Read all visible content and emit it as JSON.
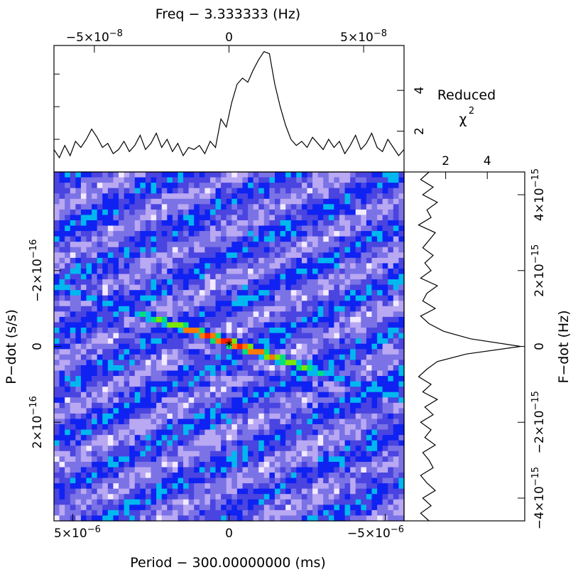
{
  "chart_data": [
    {
      "type": "line",
      "panel": "top",
      "xlabel": "Freq − 3.333333 (Hz)",
      "ylabel": "Reduced",
      "ylabel_symbol": "χ",
      "ylabel_exp": "2",
      "xlim": [
        -6.5e-08,
        6.5e-08
      ],
      "ylim": [
        0,
        6.2
      ],
      "x_ticks": [
        {
          "value": -5e-08,
          "base": "−5×10",
          "exp": "−8"
        },
        {
          "value": 0,
          "base": "0",
          "exp": ""
        },
        {
          "value": 5e-08,
          "base": "5×10",
          "exp": "−8"
        }
      ],
      "y_ticks": [
        {
          "value": 2,
          "label": "2"
        },
        {
          "value": 4,
          "label": "4"
        }
      ],
      "series": [
        {
          "x": [
            -6.5e-08,
            -6.3e-08,
            -6.1e-08,
            -5.9e-08,
            -5.7e-08,
            -5.5e-08,
            -5.3e-08,
            -5.1e-08,
            -4.9e-08,
            -4.7e-08,
            -4.5e-08,
            -4.3e-08,
            -4.1e-08,
            -3.9e-08,
            -3.7e-08,
            -3.5e-08,
            -3.3e-08,
            -3.1e-08,
            -2.9e-08,
            -2.7e-08,
            -2.5e-08,
            -2.3e-08,
            -2.1e-08,
            -1.9e-08,
            -1.7e-08,
            -1.5e-08,
            -1.3e-08,
            -1.1e-08,
            -9e-09,
            -7e-09,
            -5e-09,
            -3e-09,
            -1e-09,
            1e-09,
            3e-09,
            5e-09,
            7e-09,
            9e-09,
            1.1e-08,
            1.3e-08,
            1.5e-08,
            1.7e-08,
            1.9e-08,
            2.1e-08,
            2.3e-08,
            2.5e-08,
            2.7e-08,
            2.9e-08,
            3.1e-08,
            3.3e-08,
            3.5e-08,
            3.7e-08,
            3.9e-08,
            4.1e-08,
            4.3e-08,
            4.5e-08,
            4.7e-08,
            4.9e-08,
            5.1e-08,
            5.3e-08,
            5.5e-08,
            5.7e-08,
            5.9e-08,
            6.1e-08,
            6.3e-08,
            6.5e-08
          ],
          "values": [
            1.1,
            0.7,
            1.3,
            0.8,
            1.5,
            1.2,
            1.6,
            2.1,
            1.7,
            1.2,
            1.4,
            0.9,
            1.1,
            1.5,
            1.0,
            1.3,
            1.8,
            1.1,
            1.4,
            1.9,
            1.2,
            1.6,
            1.0,
            1.4,
            0.8,
            1.2,
            1.1,
            1.3,
            0.9,
            1.5,
            1.2,
            2.6,
            2.2,
            3.4,
            4.3,
            4.6,
            4.4,
            5.0,
            5.5,
            5.9,
            5.8,
            4.3,
            3.2,
            2.3,
            1.6,
            1.3,
            1.5,
            1.2,
            1.7,
            1.4,
            1.1,
            1.6,
            1.2,
            1.5,
            0.9,
            1.3,
            1.8,
            1.1,
            1.4,
            1.9,
            1.2,
            1.0,
            1.6,
            1.2,
            0.8,
            1.1
          ]
        }
      ]
    },
    {
      "type": "heatmap",
      "panel": "main",
      "xlabel": "Period − 300.00000000 (ms)",
      "ylabel": "P−dot (s/s)",
      "xlim": [
        5.6e-06,
        -5.6e-06
      ],
      "ylim": [
        -4.6e-16,
        4.6e-16
      ],
      "x_ticks": [
        {
          "value": 5e-06,
          "base": "5×10",
          "exp": "−6"
        },
        {
          "value": 0,
          "base": "0",
          "exp": ""
        },
        {
          "value": -5e-06,
          "base": "−5×10",
          "exp": "−6"
        }
      ],
      "y_ticks": [
        {
          "value": -2e-16,
          "base": "−2×10",
          "exp": "−16"
        },
        {
          "value": 0,
          "base": "0",
          "exp": ""
        },
        {
          "value": 2e-16,
          "base": "2×10",
          "exp": "−16"
        }
      ],
      "best_fit": {
        "period": 0,
        "pdot": 0,
        "marker": "*"
      },
      "ridge": {
        "from": {
          "period": 5.6e-06,
          "pdot": -1.6e-16
        },
        "to": {
          "period": -5.6e-06,
          "pdot": 1.4e-16
        },
        "secondary_offset_pdot": 5.5e-17,
        "peak": {
          "period": 0,
          "pdot": 0
        }
      },
      "grid": {
        "cols": 65,
        "rows": 65
      },
      "colors": [
        "#f2eaff",
        "#b9a8f2",
        "#7b72e6",
        "#4a44e0",
        "#0f22f2",
        "#00b8ef",
        "#00e07a",
        "#7ae600",
        "#ff7a00",
        "#ff1f00"
      ]
    },
    {
      "type": "line",
      "panel": "right",
      "ylabel": "F−dot (Hz)",
      "xlim": [
        0,
        5.8
      ],
      "ylim": [
        -4.6e-15,
        4.6e-15
      ],
      "x_ticks": [
        {
          "value": 2,
          "label": "2"
        },
        {
          "value": 4,
          "label": "4"
        }
      ],
      "y_ticks": [
        {
          "value": -4e-15,
          "base": "−4×10",
          "exp": "−15"
        },
        {
          "value": -2e-15,
          "base": "−2×10",
          "exp": "−15"
        },
        {
          "value": 0,
          "base": "0",
          "exp": ""
        },
        {
          "value": 2e-15,
          "base": "2×10",
          "exp": "−15"
        },
        {
          "value": 4e-15,
          "base": "4×10",
          "exp": "−15"
        }
      ],
      "series": [
        {
          "y": [
            4.6e-15,
            4.4e-15,
            4.2e-15,
            4e-15,
            3.8e-15,
            3.6e-15,
            3.4e-15,
            3.2e-15,
            3e-15,
            2.8e-15,
            2.6e-15,
            2.4e-15,
            2.2e-15,
            2e-15,
            1.8e-15,
            1.6e-15,
            1.4e-15,
            1.2e-15,
            1e-15,
            8e-16,
            6e-16,
            4e-16,
            2e-16,
            0.0,
            -2e-16,
            -4e-16,
            -6e-16,
            -8e-16,
            -1e-15,
            -1.2e-15,
            -1.4e-15,
            -1.6e-15,
            -1.8e-15,
            -2e-15,
            -2.2e-15,
            -2.4e-15,
            -2.6e-15,
            -2.8e-15,
            -3e-15,
            -3.2e-15,
            -3.4e-15,
            -3.6e-15,
            -3.8e-15,
            -4e-15,
            -4.2e-15,
            -4.4e-15,
            -4.6e-15
          ],
          "values": [
            1.2,
            0.8,
            1.4,
            0.9,
            1.6,
            1.1,
            1.3,
            0.7,
            1.5,
            1.2,
            0.9,
            1.4,
            1.0,
            1.3,
            0.8,
            1.6,
            1.1,
            0.9,
            1.5,
            0.8,
            1.2,
            1.9,
            3.2,
            5.6,
            3.0,
            1.6,
            1.1,
            0.7,
            1.3,
            0.9,
            1.6,
            1.0,
            1.4,
            0.8,
            1.3,
            1.0,
            1.5,
            0.9,
            1.2,
            1.4,
            0.8,
            1.1,
            1.5,
            0.9,
            1.3,
            0.8,
            1.2
          ]
        }
      ]
    }
  ]
}
